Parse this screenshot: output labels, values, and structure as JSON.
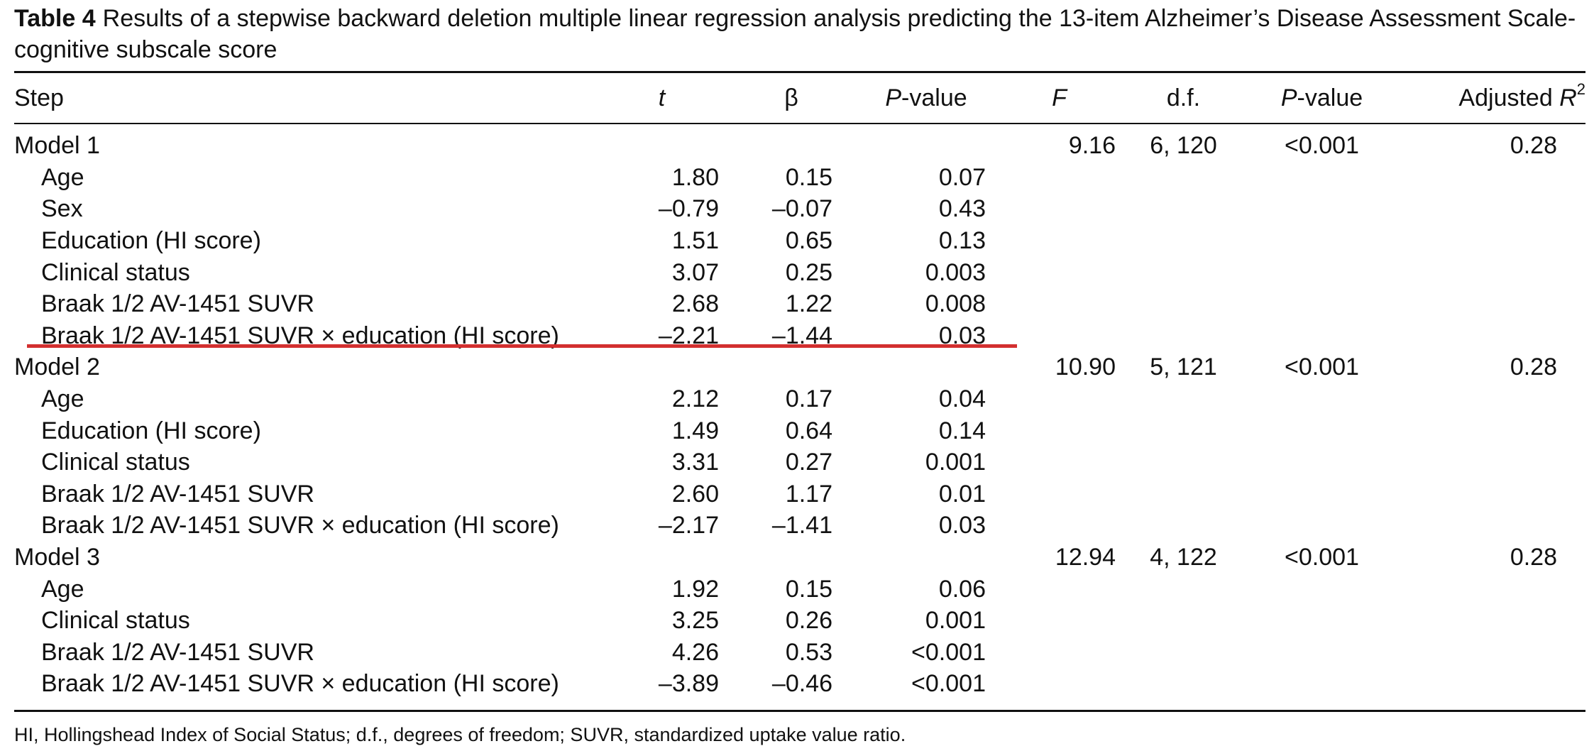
{
  "caption": {
    "label": "Table 4",
    "text": "Results of a stepwise backward deletion multiple linear regression analysis predicting the 13-item Alzheimer’s Disease Assessment Scale-cognitive subscale score"
  },
  "headers": {
    "step": "Step",
    "t": "t",
    "beta": "β",
    "p_prefix": "P",
    "p_suffix": "-value",
    "f": "F",
    "df": "d.f.",
    "model_p_prefix": "P",
    "model_p_suffix": "-value",
    "r2_prefix": "Adjusted ",
    "r2_var": "R",
    "r2_sup": "2"
  },
  "models": [
    {
      "name": "Model 1",
      "F": "9.16",
      "df": "6, 120",
      "p": "<0.001",
      "r2": "0.28",
      "rows": [
        {
          "predictor": "Age",
          "t": "1.80",
          "beta": "0.15",
          "p": "0.07"
        },
        {
          "predictor": "Sex",
          "t": "–0.79",
          "beta": "–0.07",
          "p": "0.43"
        },
        {
          "predictor": "Education (HI score)",
          "t": "1.51",
          "beta": "0.65",
          "p": "0.13"
        },
        {
          "predictor": "Clinical status",
          "t": "3.07",
          "beta": "0.25",
          "p": "0.003"
        },
        {
          "predictor": "Braak 1/2 AV-1451 SUVR",
          "t": "2.68",
          "beta": "1.22",
          "p": "0.008"
        },
        {
          "predictor": "Braak 1/2 AV-1451 SUVR × education (HI score)",
          "t": "–2.21",
          "beta": "–1.44",
          "p": "0.03"
        }
      ]
    },
    {
      "name": "Model 2",
      "F": "10.90",
      "df": "5, 121",
      "p": "<0.001",
      "r2": "0.28",
      "rows": [
        {
          "predictor": "Age",
          "t": "2.12",
          "beta": "0.17",
          "p": "0.04"
        },
        {
          "predictor": "Education (HI score)",
          "t": "1.49",
          "beta": "0.64",
          "p": "0.14"
        },
        {
          "predictor": "Clinical status",
          "t": "3.31",
          "beta": "0.27",
          "p": "0.001"
        },
        {
          "predictor": "Braak 1/2 AV-1451 SUVR",
          "t": "2.60",
          "beta": "1.17",
          "p": "0.01"
        },
        {
          "predictor": "Braak 1/2 AV-1451 SUVR × education (HI score)",
          "t": "–2.17",
          "beta": "–1.41",
          "p": "0.03"
        }
      ]
    },
    {
      "name": "Model 3",
      "F": "12.94",
      "df": "4, 122",
      "p": "<0.001",
      "r2": "0.28",
      "rows": [
        {
          "predictor": "Age",
          "t": "1.92",
          "beta": "0.15",
          "p": "0.06"
        },
        {
          "predictor": "Clinical status",
          "t": "3.25",
          "beta": "0.26",
          "p": "0.001"
        },
        {
          "predictor": "Braak 1/2 AV-1451 SUVR",
          "t": "4.26",
          "beta": "0.53",
          "p": "<0.001"
        },
        {
          "predictor": "Braak 1/2 AV-1451 SUVR × education (HI score)",
          "t": "–3.89",
          "beta": "–0.46",
          "p": "<0.001"
        }
      ]
    }
  ],
  "footnote": "HI, Hollingshead Index of Social Status; d.f., degrees of freedom; SUVR, standardized uptake value ratio.",
  "colors": {
    "highlight_line": "#d32f2f"
  }
}
